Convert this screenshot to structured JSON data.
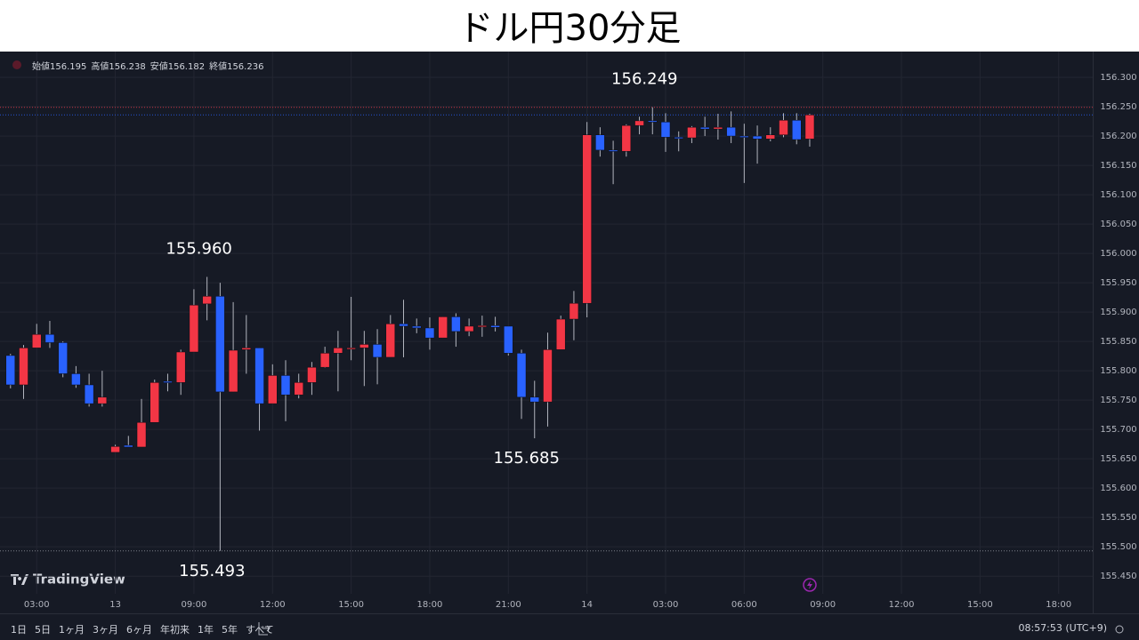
{
  "header": {
    "title": "ドル円30分足"
  },
  "chart_data": {
    "type": "candlestick",
    "ohlc_legend": [
      {
        "label": "始値",
        "value": 156.195
      },
      {
        "label": "高値",
        "value": 156.238
      },
      {
        "label": "安値",
        "value": 156.182
      },
      {
        "label": "終値",
        "value": 156.236
      }
    ],
    "open": [
      155.826,
      155.776,
      155.839,
      155.862,
      155.848,
      155.795,
      155.776,
      155.744,
      155.661,
      155.673,
      155.67,
      155.712,
      155.782,
      155.78,
      155.832,
      155.914,
      155.927,
      155.764,
      155.836,
      155.839,
      155.744,
      155.792,
      155.759,
      155.78,
      155.806,
      155.83,
      155.838,
      155.839,
      155.845,
      155.823,
      155.88,
      155.876,
      155.873,
      155.856,
      155.892,
      155.867,
      155.876,
      155.877,
      155.876,
      155.83,
      155.755,
      155.747,
      155.836,
      155.888,
      155.915,
      156.202,
      156.176,
      156.174,
      156.218,
      156.226,
      156.224,
      156.198,
      156.197,
      156.215,
      156.212,
      156.215,
      156.2,
      156.2,
      156.195,
      156.202,
      156.227,
      156.195
    ],
    "high": [
      155.829,
      155.844,
      155.88,
      155.885,
      155.85,
      155.808,
      155.795,
      155.8,
      155.674,
      155.689,
      155.752,
      155.785,
      155.795,
      155.836,
      155.939,
      155.96,
      155.95,
      155.917,
      155.895,
      155.839,
      155.811,
      155.818,
      155.795,
      155.815,
      155.841,
      155.868,
      155.926,
      155.868,
      155.871,
      155.895,
      155.921,
      155.889,
      155.891,
      155.892,
      155.898,
      155.889,
      155.894,
      155.892,
      155.876,
      155.836,
      155.783,
      155.865,
      155.894,
      155.936,
      156.224,
      156.215,
      156.192,
      156.22,
      156.233,
      156.249,
      156.239,
      156.208,
      156.217,
      156.233,
      156.238,
      156.242,
      156.221,
      156.218,
      156.215,
      156.239,
      156.239,
      156.238
    ],
    "low": [
      155.77,
      155.752,
      155.839,
      155.839,
      155.789,
      155.771,
      155.739,
      155.739,
      155.661,
      155.67,
      155.67,
      155.712,
      155.765,
      155.759,
      155.832,
      155.886,
      155.493,
      155.764,
      155.795,
      155.698,
      155.744,
      155.714,
      155.753,
      155.759,
      155.805,
      155.765,
      155.818,
      155.774,
      155.777,
      155.823,
      155.823,
      155.864,
      155.836,
      155.856,
      155.841,
      155.859,
      155.858,
      155.867,
      155.826,
      155.718,
      155.685,
      155.705,
      155.836,
      155.852,
      155.891,
      156.165,
      156.118,
      156.165,
      156.203,
      156.203,
      156.173,
      156.174,
      156.188,
      156.2,
      156.194,
      156.188,
      156.12,
      156.153,
      156.191,
      156.198,
      156.186,
      156.182
    ],
    "close": [
      155.776,
      155.839,
      155.862,
      155.848,
      155.795,
      155.776,
      155.744,
      155.755,
      155.671,
      155.67,
      155.712,
      155.78,
      155.78,
      155.832,
      155.912,
      155.927,
      155.764,
      155.835,
      155.839,
      155.744,
      155.792,
      155.759,
      155.78,
      155.806,
      155.83,
      155.839,
      155.839,
      155.845,
      155.823,
      155.88,
      155.876,
      155.873,
      155.856,
      155.892,
      155.867,
      155.876,
      155.877,
      155.874,
      155.83,
      155.755,
      155.747,
      155.836,
      155.888,
      155.915,
      156.202,
      156.176,
      156.174,
      156.218,
      156.226,
      156.224,
      156.198,
      156.197,
      156.215,
      156.212,
      156.215,
      156.2,
      156.199,
      156.195,
      156.202,
      156.227,
      156.194,
      156.236
    ],
    "up_color": "#f23645",
    "down_color": "#2962ff",
    "annotations": [
      {
        "label": "156.249",
        "value": 156.249
      },
      {
        "label": "155.960",
        "value": 155.96
      },
      {
        "label": "155.685",
        "value": 155.685
      },
      {
        "label": "155.493",
        "value": 155.493
      }
    ],
    "xlim": [
      -0.8,
      82.6
    ],
    "xticks": [
      {
        "value": 2,
        "label": "03:00"
      },
      {
        "value": 8,
        "label": "13"
      },
      {
        "value": 14,
        "label": "09:00"
      },
      {
        "value": 20,
        "label": "12:00"
      },
      {
        "value": 26,
        "label": "15:00"
      },
      {
        "value": 32,
        "label": "18:00"
      },
      {
        "value": 38,
        "label": "21:00"
      },
      {
        "value": 44,
        "label": "14"
      },
      {
        "value": 50,
        "label": "03:00"
      },
      {
        "value": 56,
        "label": "06:00"
      },
      {
        "value": 62,
        "label": "09:00"
      },
      {
        "value": 68,
        "label": "12:00"
      },
      {
        "value": 74,
        "label": "15:00"
      },
      {
        "value": 80,
        "label": "18:00"
      }
    ],
    "ylim": [
      155.42,
      156.344
    ],
    "yticks": [
      {
        "value": 156.3,
        "label": "156.300"
      },
      {
        "value": 156.25,
        "label": "156.250"
      },
      {
        "value": 156.2,
        "label": "156.200"
      },
      {
        "value": 156.15,
        "label": "156.150"
      },
      {
        "value": 156.1,
        "label": "156.100"
      },
      {
        "value": 156.05,
        "label": "156.050"
      },
      {
        "value": 156,
        "label": "156.000"
      },
      {
        "value": 155.95,
        "label": "155.950"
      },
      {
        "value": 155.9,
        "label": "155.900"
      },
      {
        "value": 155.85,
        "label": "155.850"
      },
      {
        "value": 155.8,
        "label": "155.800"
      },
      {
        "value": 155.75,
        "label": "155.750"
      },
      {
        "value": 155.7,
        "label": "155.700"
      },
      {
        "value": 155.65,
        "label": "155.650"
      },
      {
        "value": 155.6,
        "label": "155.600"
      },
      {
        "value": 155.55,
        "label": "155.550"
      },
      {
        "value": 155.5,
        "label": "155.500"
      },
      {
        "value": 155.45,
        "label": "155.450"
      }
    ],
    "grid": true
  },
  "watermark": "TradingView",
  "toolbar": {
    "ranges": [
      "1日",
      "5日",
      "1ヶ月",
      "3ヶ月",
      "6ヶ月",
      "年初来",
      "1年",
      "5年",
      "すべて"
    ],
    "clock": "08:57:53 (UTC+9)"
  }
}
